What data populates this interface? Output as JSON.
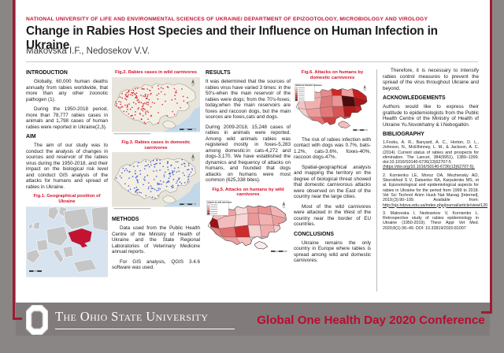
{
  "banner": "NATIONAL UNIVERSITY OF LIFE  AND ENVIRONMENTAL SCIENCES OF UKRAINE/ DEPARTMENT OF EPIZOOTOLOGY, MICROBIOLOGY AND VIROLOGY",
  "title": "Change in Rabies Host Species and their Influence on Human Infection in Ukraine",
  "authors": "Makovska I.F., Nedosekov V.V.",
  "sections": {
    "introduction": {
      "heading": "INTRODUCTION",
      "paragraphs": [
        "Globally, 60,000 human deaths annually from rabies worldwide, that more than any other zoonotic pathogen (1).",
        "During the 1950-2018 period, more than 78,777 rabies cases in animals and 1,798 cases of human rabies were reported in Ukraine(2,3)."
      ]
    },
    "aim": {
      "heading": "AIM",
      "paragraphs": [
        "The aim of our study was to conduct the analysis of changes in sources and reservoir of the rabies virus during the 1950-2018, and their impact on the biological risk level and conduct GIS analysis of the attacks for humans and spread of rabies in Ukraine."
      ]
    },
    "methods": {
      "heading": "METHODS",
      "paragraphs": [
        "Data used from the Public Health Centre of the Ministry of Health of Ukraine and the State Regional Laboratories of Veterinary Medicine annual reports.",
        "For GIS analysis, QGIS 3.4.6 software was used."
      ]
    },
    "results": {
      "heading": "RESULTS",
      "paragraphs": [
        "It was determined that the sources of rabies virus have varied 3 times: in the 50's-when the main reservoir of the rabies were dogs; from the 70's-foxes; today,when the main reservoirs are foxes and raccoon dogs, but the main sources are foxes,cats and dogs.",
        "During 2009-2018, 15,248 cases of rabies in animals were reported. Among wild animals rabies was registered mostly in foxes-5,283 among domestic:in cats-4,272 and dogs-3,170. We have established the dynamics and frequency of attacks on humans, and founded that dogs attacks on humans were most common (625,338 bites)."
      ]
    },
    "risk": {
      "paragraphs": [
        "The risk of rabies infection with contact with dogs was 0.7%, bats-1.2%, cats-3.6%, foxes-40%, raccoon dogs-47%.",
        "Spatial-geographical analysis and mapping the territory on the degree of biological threat showed that domestic carnivorous attacks were observed on the East of the country near the large cities.",
        "Most of the wild carnivores were attacked in the West of the country near the border of EU countries."
      ]
    },
    "conclusions": {
      "heading": "CONCLUSIONS",
      "paragraphs": [
        "Ukraine remains the only country in Europe where rabies is spread among wild and domestic carnivores."
      ]
    },
    "therefore": {
      "paragraphs": [
        "Therefore, it is necessary to intensify rabies control measures to prevent the spread of the virus throughout Ukraine and beyond."
      ]
    },
    "acknowledgements": {
      "heading": "ACKNOWLEDGEMENTS",
      "paragraphs": [
        "Authors would like to express their gratitude to epidemiologists from the Public Health Centre of the Ministry of Health of Ukraine Yu.Novokhatny & I.Nebogatkin."
      ]
    },
    "bibliography": {
      "heading": "BIBLIOGRAPHY",
      "references": [
        {
          "parts": [
            {
              "text": "1.Fooks, A. R., Banyard, A. C., Horton, D. L., Johnson, N., McElhinney, L. M., & Jackson, A. C. (2014). Current status of rabies and prospects for elimination. The Lancet, 384(9951), 1389–1399. doi:10.1016/S0140-6736(13)62707-5 ",
              "link": false
            },
            {
              "text": "(https://doi.org/10.1016/S0140-6736(13)62707-5).",
              "link": true
            }
          ]
        },
        {
          "parts": [
            {
              "text": "2. Kornienko LE, Moroz OA, Mezhensky AO, Skorokhod S V, Datsenko RA, Karpulenko MS, et al. Epizootological and epidemiological aspects for rabies in Ukraine for the period from 1999 to 2018. Vet Sci Technol Anim Husb Nat Manag [Internet]. 2019;(3):90–109. Available from: ",
              "link": false
            },
            {
              "text": "http://ojs.hdzva.edu.ua/index.php/journal/article/view/120",
              "link": true
            }
          ]
        },
        {
          "parts": [
            {
              "text": "3. Makovska I, Nedosekov V, Kornienko L. Retrospective study of rabies epidemiology in Ukraine (1950-2019). Theor Appl Vet Med. 2020;8(1):36–49. DOI: 10.32819/2020.81007",
              "link": false
            }
          ]
        }
      ]
    }
  },
  "figures": {
    "fig1": {
      "caption": "Fig.1. Geographical position of Ukraine",
      "highlight_color": "#c41331"
    },
    "fig2": {
      "caption": "Fig.2. Rabies cases in wild carnivores",
      "dot_color": "#d41f2c"
    },
    "fig3": {
      "caption": "Fig.3. Rabies cases in domestic carnivores",
      "dot_color": "#3b5bd6"
    },
    "fig5": {
      "caption": "Fig.5. Attacks on humans by wild carnivores",
      "legend_title": "Attacks by wild carnivores",
      "legend_swatches": [
        "#fbeaea",
        "#f2b5b5",
        "#e98f8f",
        "#cd2c2c",
        "#971414"
      ],
      "region_colors": [
        "#f2b9b9",
        "#eda1a1",
        "#f7dada",
        "#ec9e9e",
        "#e98f8f",
        "#f2b5b5",
        "#971414",
        "#f3bcbc",
        "#f7d6d6",
        "#ea9898",
        "#f1b2b2",
        "#ec9e9e",
        "#e58383",
        "#e07272",
        "#cd2c2c",
        "#f6d2d2",
        "#f0acac",
        "#f6d0d0",
        "#ee9f9f",
        "#f3bfbf",
        "#f6d2d2",
        "#f2b7b7",
        "#fbeaea"
      ]
    },
    "fig6": {
      "caption": "Fig.6. Attacks on humans by domestic carnivores",
      "legend_title": "Attacks by domestic carnivores",
      "legend_swatches": [
        "#f6cfcf",
        "#f0adad",
        "#e88a8a",
        "#d95555",
        "#c32020",
        "#a61616",
        "#4c0c0c"
      ],
      "region_colors": [
        "#f6cfcf",
        "#f0adad",
        "#e88a8a",
        "#cc2a2a",
        "#ee9f9f",
        "#c32020",
        "#f4c4c4",
        "#f0b0b0",
        "#e07a7a",
        "#ea9494",
        "#4c0c0c",
        "#a61616",
        "#f6cccc",
        "#ec9b9b",
        "#e27878",
        "#d95555",
        "#b51b1b",
        "#c62626",
        "#e27474",
        "#d04040",
        "#d84b4b",
        "#e06565",
        "#f3bdbd"
      ]
    }
  },
  "footer": {
    "university": "The Ohio State University",
    "conference": "Global One Health Day 2020 Conference"
  },
  "colors": {
    "border_red": "#9e1b32",
    "banner_red": "#c41230",
    "caption_red": "#d6132b",
    "conference_red": "#bb0a30"
  }
}
